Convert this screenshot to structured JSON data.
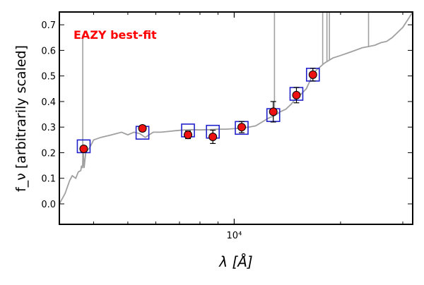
{
  "chart_data": {
    "type": "scatter",
    "title": "",
    "annotation": "EAZY best-fit",
    "xlabel": "λ [Å]",
    "ylabel": "f_ν [arbitrarily scaled]",
    "x_scale": "log",
    "xlim": [
      3200,
      32000
    ],
    "ylim": [
      -0.08,
      0.75
    ],
    "yticks": [
      0.0,
      0.1,
      0.2,
      0.3,
      0.4,
      0.5,
      0.6,
      0.7
    ],
    "ytick_labels": [
      "0.0",
      "0.1",
      "0.2",
      "0.3",
      "0.4",
      "0.5",
      "0.6",
      "0.7"
    ],
    "xticks_major": [
      10000
    ],
    "xtick_labels": [
      "10⁴"
    ],
    "xticks_minor": [
      4000,
      5000,
      6000,
      7000,
      8000,
      9000,
      20000,
      30000
    ],
    "colors": {
      "observed": "#ee1111",
      "model_box": "#2222cc",
      "template": "#a0a0a0",
      "annotation": "#ff0000"
    },
    "series": [
      {
        "kind": "observed",
        "points": [
          {
            "x": 3750,
            "y": 0.215,
            "err": 0.012
          },
          {
            "x": 5500,
            "y": 0.295,
            "err": 0.012
          },
          {
            "x": 7400,
            "y": 0.27,
            "err": 0.015
          },
          {
            "x": 8700,
            "y": 0.262,
            "err": 0.026
          },
          {
            "x": 10500,
            "y": 0.3,
            "err": 0.022
          },
          {
            "x": 12900,
            "y": 0.36,
            "err": 0.04
          },
          {
            "x": 15000,
            "y": 0.425,
            "err": 0.03
          },
          {
            "x": 16700,
            "y": 0.505,
            "err": 0.025
          }
        ]
      },
      {
        "kind": "model",
        "points": [
          {
            "x": 3750,
            "y": 0.225
          },
          {
            "x": 5500,
            "y": 0.278
          },
          {
            "x": 7400,
            "y": 0.287
          },
          {
            "x": 8700,
            "y": 0.282
          },
          {
            "x": 10500,
            "y": 0.297
          },
          {
            "x": 12900,
            "y": 0.347
          },
          {
            "x": 15000,
            "y": 0.43
          },
          {
            "x": 16700,
            "y": 0.505
          }
        ]
      },
      {
        "kind": "template",
        "points": [
          [
            3200,
            0.0
          ],
          [
            3320,
            0.04
          ],
          [
            3420,
            0.09
          ],
          [
            3480,
            0.11
          ],
          [
            3560,
            0.1
          ],
          [
            3620,
            0.125
          ],
          [
            3680,
            0.13
          ],
          [
            3700,
            0.15
          ],
          [
            3720,
            0.14
          ],
          [
            3740,
            0.2
          ],
          [
            3760,
            0.14
          ],
          [
            3800,
            0.2
          ],
          [
            3900,
            0.22
          ],
          [
            4000,
            0.25
          ],
          [
            4200,
            0.26
          ],
          [
            4500,
            0.27
          ],
          [
            4800,
            0.28
          ],
          [
            5000,
            0.27
          ],
          [
            5200,
            0.28
          ],
          [
            5400,
            0.275
          ],
          [
            5600,
            0.26
          ],
          [
            5900,
            0.28
          ],
          [
            6200,
            0.28
          ],
          [
            6500,
            0.283
          ],
          [
            6800,
            0.286
          ],
          [
            7100,
            0.288
          ],
          [
            7500,
            0.29
          ],
          [
            8000,
            0.289
          ],
          [
            8500,
            0.29
          ],
          [
            9000,
            0.292
          ],
          [
            9500,
            0.292
          ],
          [
            10000,
            0.294
          ],
          [
            10500,
            0.297
          ],
          [
            11000,
            0.3
          ],
          [
            11500,
            0.305
          ],
          [
            12000,
            0.32
          ],
          [
            12500,
            0.335
          ],
          [
            13000,
            0.345
          ],
          [
            13500,
            0.36
          ],
          [
            14000,
            0.37
          ],
          [
            14500,
            0.39
          ],
          [
            15000,
            0.415
          ],
          [
            15500,
            0.43
          ],
          [
            16000,
            0.45
          ],
          [
            16500,
            0.49
          ],
          [
            17000,
            0.52
          ],
          [
            18000,
            0.55
          ],
          [
            19000,
            0.57
          ],
          [
            20000,
            0.58
          ],
          [
            21000,
            0.59
          ],
          [
            22000,
            0.6
          ],
          [
            23000,
            0.61
          ],
          [
            24000,
            0.615
          ],
          [
            25000,
            0.62
          ],
          [
            26000,
            0.63
          ],
          [
            27000,
            0.635
          ],
          [
            28000,
            0.65
          ],
          [
            29000,
            0.67
          ],
          [
            30000,
            0.69
          ],
          [
            31000,
            0.72
          ],
          [
            32000,
            0.75
          ]
        ],
        "emission_lines": [
          {
            "x": 3727,
            "y": 0.66
          },
          {
            "x": 13000,
            "y": 0.75
          },
          {
            "x": 17800,
            "y": 0.75
          },
          {
            "x": 18300,
            "y": 0.75
          },
          {
            "x": 18600,
            "y": 0.75
          },
          {
            "x": 24000,
            "y": 0.75
          }
        ]
      }
    ]
  }
}
